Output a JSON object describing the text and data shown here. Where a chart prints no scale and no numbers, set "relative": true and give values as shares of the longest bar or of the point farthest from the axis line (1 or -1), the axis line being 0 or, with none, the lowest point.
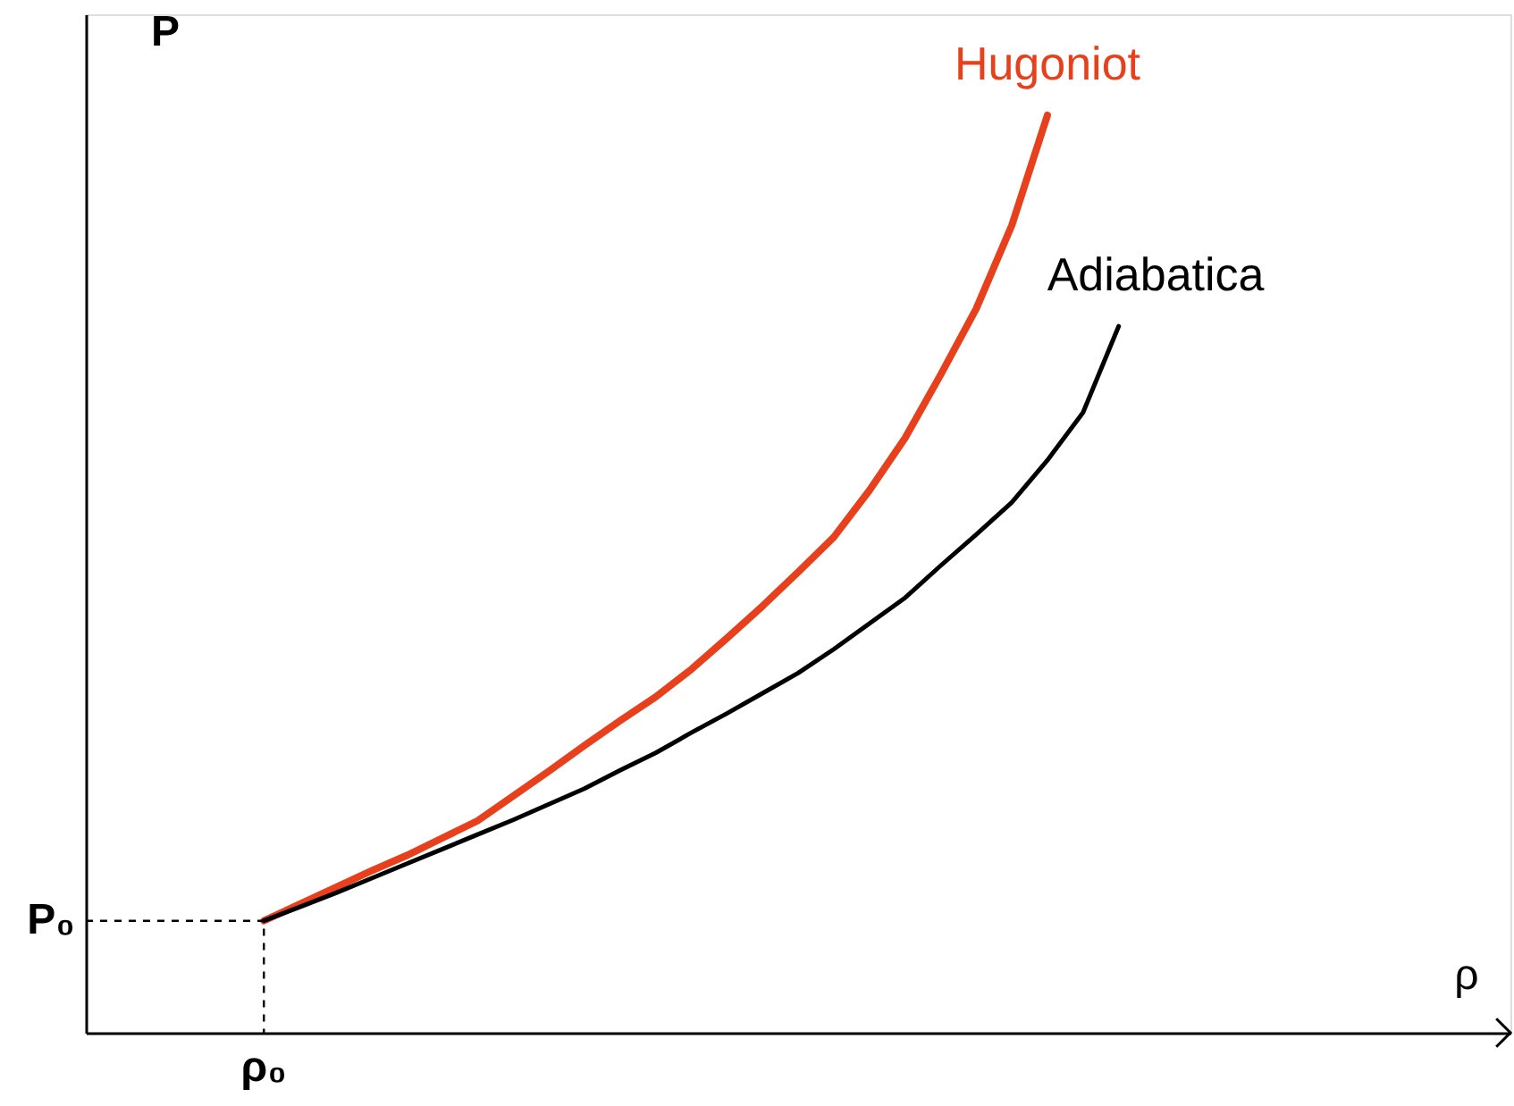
{
  "chart_data": {
    "type": "line",
    "relative": true,
    "xlabel": "ρ",
    "ylabel": "P",
    "marker": "none",
    "categories": [
      null,
      null,
      null,
      null,
      null,
      null,
      null,
      null,
      null,
      null,
      null,
      null,
      null,
      null,
      null,
      null,
      null,
      null,
      null,
      null,
      null,
      null,
      null,
      null,
      null,
      null,
      null,
      null,
      null,
      null,
      null,
      null,
      null,
      null,
      null,
      null,
      null,
      null,
      null,
      null,
      null
    ],
    "series": [
      {
        "name": "Hugoniot",
        "color": "#e8401c",
        "line_style": "solid",
        "values": [
          null,
          null,
          null,
          null,
          null,
          0.122,
          0.14,
          0.158,
          0.176,
          0.193,
          0.212,
          0.231,
          0.258,
          0.285,
          0.313,
          0.34,
          0.366,
          0.396,
          0.43,
          0.465,
          0.502,
          0.54,
          0.591,
          0.648,
          0.717,
          0.789,
          0.88,
          1.0,
          null,
          null,
          null,
          null,
          null,
          null,
          null,
          null,
          null,
          null,
          null,
          null,
          null
        ]
      },
      {
        "name": "Adiabatica",
        "color": "#000000",
        "line_style": "solid",
        "values": [
          null,
          null,
          null,
          null,
          null,
          0.122,
          0.137,
          0.152,
          0.168,
          0.184,
          0.2,
          0.216,
          0.232,
          0.249,
          0.266,
          0.286,
          0.305,
          0.327,
          0.348,
          0.37,
          0.392,
          0.418,
          0.446,
          0.474,
          0.509,
          0.543,
          0.578,
          0.624,
          0.676,
          0.77,
          null,
          null,
          null,
          null,
          null,
          null,
          null,
          null,
          null,
          null,
          null
        ]
      }
    ],
    "annotations": [
      "P₀",
      "ρ₀"
    ]
  }
}
